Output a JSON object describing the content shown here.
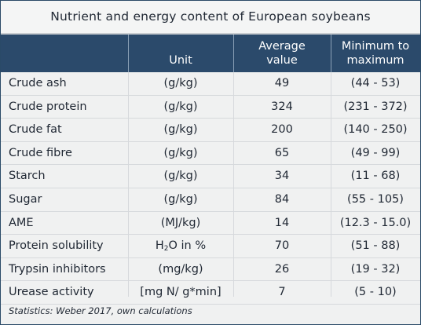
{
  "title": "Nutrient and energy content of European soybeans",
  "columns": {
    "unit": "Unit",
    "average_line1": "Average",
    "average_line2": "value",
    "range_line1": "Minimum to",
    "range_line2": "maximum"
  },
  "rows": [
    {
      "name": "Crude ash",
      "unit": "(g/kg)",
      "average": "49",
      "range": "(44 - 53)"
    },
    {
      "name": "Crude protein",
      "unit": "(g/kg)",
      "average": "324",
      "range": "(231 - 372)"
    },
    {
      "name": "Crude fat",
      "unit": "(g/kg)",
      "average": "200",
      "range": "(140 - 250)"
    },
    {
      "name": "Crude fibre",
      "unit": "(g/kg)",
      "average": "65",
      "range": "(49 - 99)"
    },
    {
      "name": "Starch",
      "unit": "(g/kg)",
      "average": "34",
      "range": "(11 - 68)"
    },
    {
      "name": "Sugar",
      "unit": "(g/kg)",
      "average": "84",
      "range": "(55 - 105)"
    },
    {
      "name": "AME",
      "unit": "(MJ/kg)",
      "average": "14",
      "range": "(12.3 - 15.0)"
    },
    {
      "name": "Protein solubility",
      "unit_prefix": "H",
      "unit_sub": "2",
      "unit_suffix": "O in %",
      "average": "70",
      "range": "(51 - 88)"
    },
    {
      "name": "Trypsin inhibitors",
      "unit": "(mg/kg)",
      "average": "26",
      "range": "(19 - 32)"
    },
    {
      "name": "Urease activity",
      "unit": "[mg N/ g*min]",
      "average": "7",
      "range": "(5 - 10)"
    }
  ],
  "footnote": "Statistics: Weber 2017, own calculations",
  "colors": {
    "header_bg": "#2b4a6b",
    "body_bg": "#f0f1f1"
  }
}
